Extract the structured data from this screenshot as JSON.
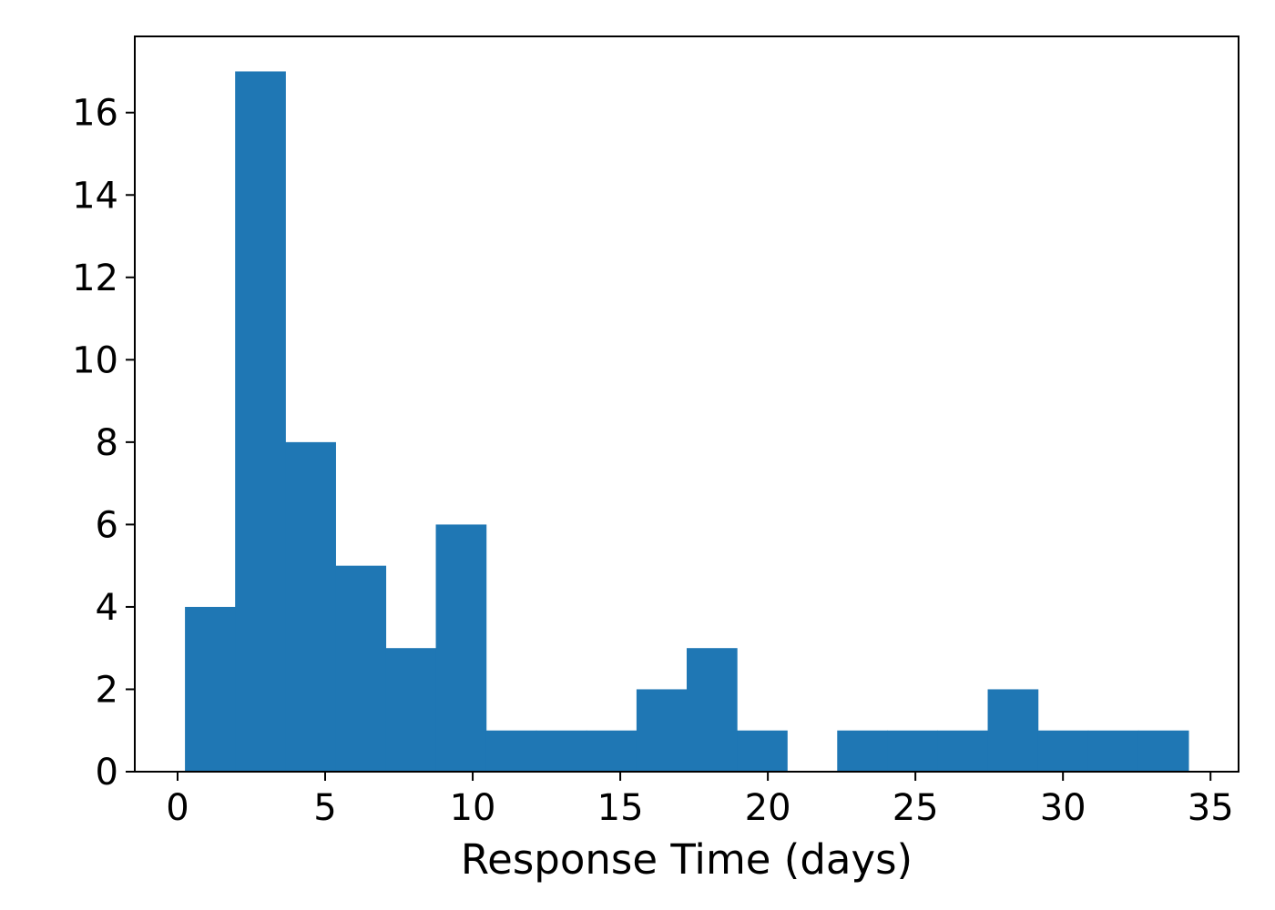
{
  "chart_data": {
    "type": "bar",
    "subtype": "histogram",
    "title": "",
    "xlabel": "Response Time (days)",
    "ylabel": "",
    "xlim": [
      -1.45,
      35.95
    ],
    "ylim": [
      0,
      17.85
    ],
    "x_ticks": [
      0,
      5,
      10,
      15,
      20,
      25,
      30,
      35
    ],
    "x_tick_labels": [
      "0",
      "5",
      "10",
      "15",
      "20",
      "25",
      "30",
      "35"
    ],
    "y_ticks": [
      0,
      2,
      4,
      6,
      8,
      10,
      12,
      14,
      16
    ],
    "y_tick_labels": [
      "0",
      "2",
      "4",
      "6",
      "8",
      "10",
      "12",
      "14",
      "16"
    ],
    "bin_edges": [
      0.25,
      1.95,
      3.65,
      5.35,
      7.05,
      8.75,
      10.45,
      12.15,
      13.85,
      15.55,
      17.25,
      18.95,
      20.65,
      22.35,
      24.05,
      25.75,
      27.45,
      29.15,
      30.85,
      32.55,
      34.25
    ],
    "series": [
      {
        "name": "Response Time",
        "values": [
          4,
          17,
          8,
          5,
          3,
          6,
          1,
          1,
          1,
          2,
          3,
          1,
          0,
          1,
          1,
          1,
          2,
          1,
          1,
          1
        ]
      }
    ],
    "bar_color": "#1f77b4",
    "grid": false
  }
}
